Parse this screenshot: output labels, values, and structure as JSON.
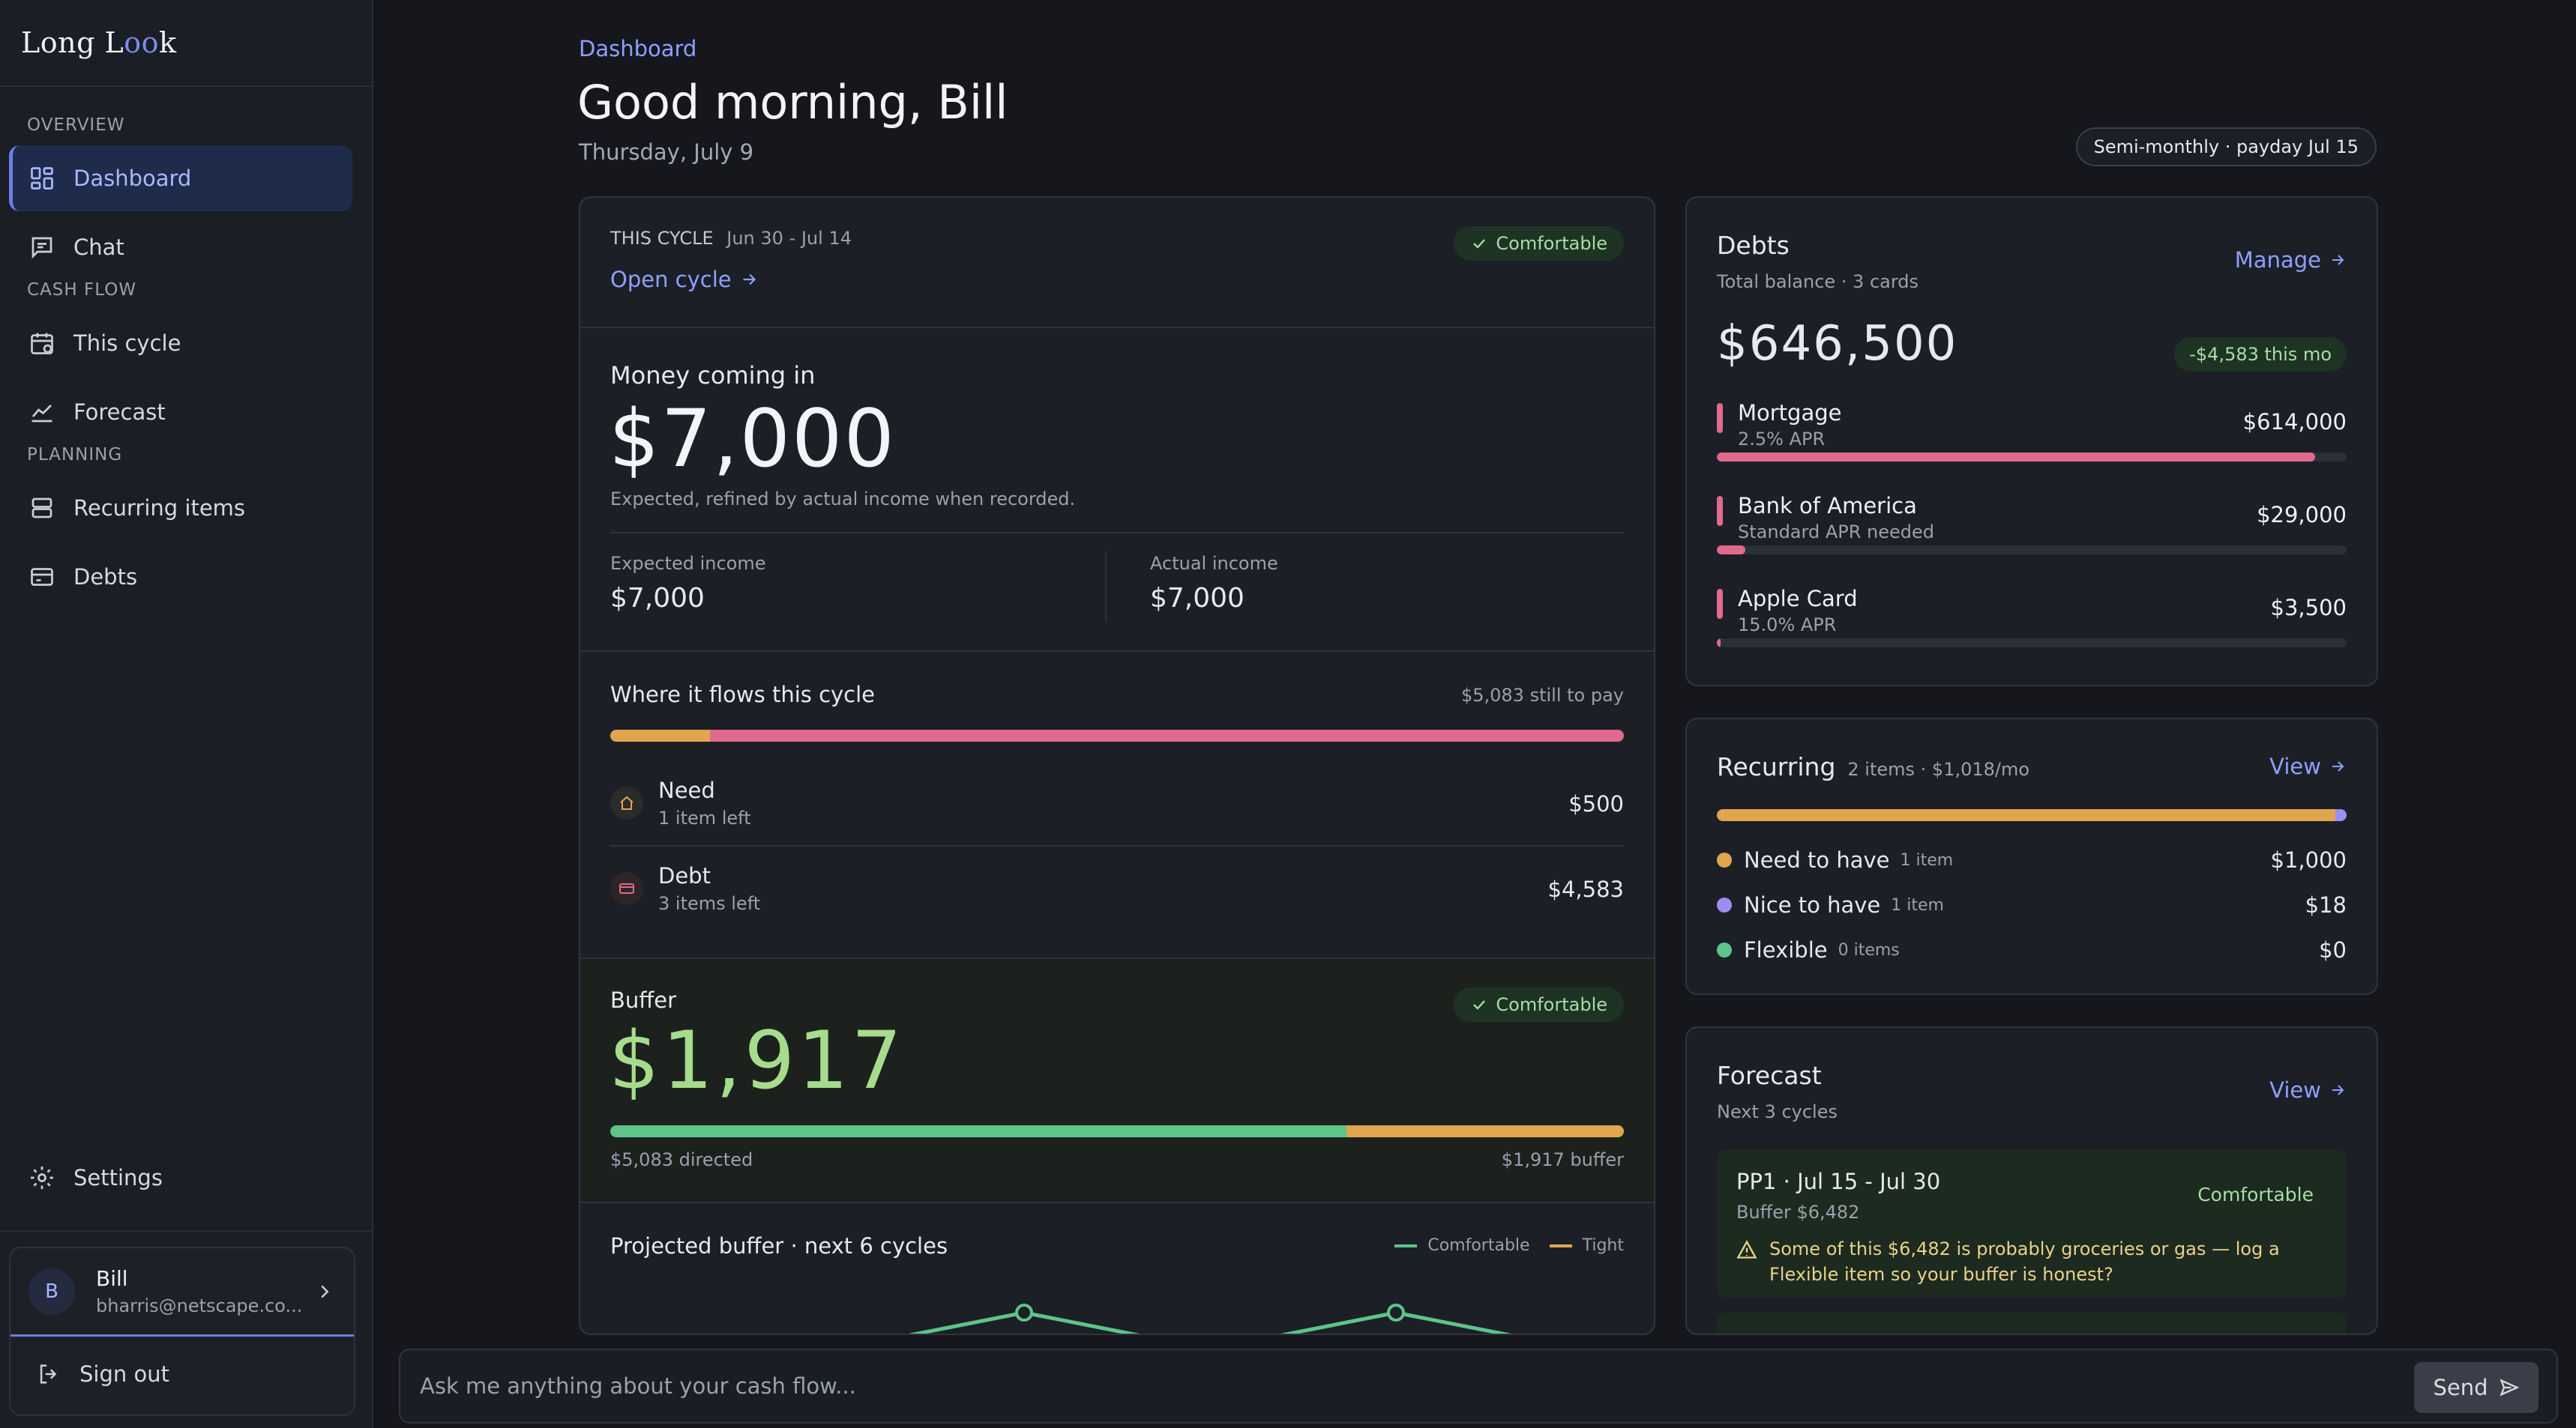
{
  "brand": {
    "name_prefix": "Long L",
    "name_eyes": "oo",
    "name_suffix": "k"
  },
  "sidebar": {
    "sections": [
      "OVERVIEW",
      "CASH FLOW",
      "PLANNING"
    ],
    "items": [
      {
        "label": "Dashboard",
        "icon": "dashboard-icon",
        "active": true
      },
      {
        "label": "Chat",
        "icon": "chat-icon"
      },
      {
        "label": "This cycle",
        "icon": "calendar-icon"
      },
      {
        "label": "Forecast",
        "icon": "chart-line-icon"
      },
      {
        "label": "Recurring items",
        "icon": "stack-icon"
      },
      {
        "label": "Debts",
        "icon": "card-icon"
      }
    ],
    "settings_label": "Settings",
    "user": {
      "initial": "B",
      "name": "Bill",
      "email": "bharris@netscape.co..."
    },
    "signout_label": "Sign out"
  },
  "header": {
    "breadcrumb": "Dashboard",
    "title": "Good morning, Bill",
    "date": "Thursday, July 9",
    "pay_schedule": "Semi-monthly · payday Jul 15"
  },
  "cycle": {
    "label": "THIS CYCLE",
    "range": "Jun 30 - Jul 14",
    "open_link": "Open cycle",
    "status": "Comfortable",
    "income_title": "Money coming in",
    "income_amount": "$7,000",
    "income_note": "Expected, refined by actual income when recorded.",
    "expected_label": "Expected income",
    "expected_value": "$7,000",
    "actual_label": "Actual income",
    "actual_value": "$7,000",
    "flows_title": "Where it flows this cycle",
    "flows_remaining": "$5,083 still to pay",
    "flow_split": {
      "need": 500,
      "debt": 4583
    },
    "flows": [
      {
        "name": "Need",
        "sub": "1 item left",
        "amount": "$500",
        "icon": "home-icon"
      },
      {
        "name": "Debt",
        "sub": "3 items left",
        "amount": "$4,583",
        "icon": "card-icon"
      }
    ],
    "buffer_title": "Buffer",
    "buffer_status": "Comfortable",
    "buffer_amount": "$1,917",
    "buffer_directed_label": "$5,083 directed",
    "buffer_label": "$1,917 buffer",
    "buffer_split": {
      "directed": 5083,
      "buffer": 1917
    },
    "projected_title": "Projected buffer · next 6 cycles",
    "legend_comfortable": "Comfortable",
    "legend_tight": "Tight"
  },
  "debts": {
    "title": "Debts",
    "subtitle": "Total balance · 3 cards",
    "manage_link": "Manage",
    "total": "$646,500",
    "change": "-$4,583 this mo",
    "items": [
      {
        "name": "Mortgage",
        "sub": "2.5% APR",
        "amount": "$614,000",
        "fill": 0.95
      },
      {
        "name": "Bank of America",
        "sub": "Standard APR needed",
        "amount": "$29,000",
        "fill": 0.045
      },
      {
        "name": "Apple Card",
        "sub": "15.0% APR",
        "amount": "$3,500",
        "fill": 0.006
      }
    ]
  },
  "recurring": {
    "title": "Recurring",
    "subtitle": "2 items · $1,018/mo",
    "view_link": "View",
    "split": {
      "need": 1000,
      "nice": 18,
      "flexible": 0
    },
    "items": [
      {
        "name": "Need to have",
        "count": "1 item",
        "amount": "$1,000",
        "color": "#e0a64f"
      },
      {
        "name": "Nice to have",
        "count": "1 item",
        "amount": "$18",
        "color": "#a08df0"
      },
      {
        "name": "Flexible",
        "count": "0 items",
        "amount": "$0",
        "color": "#5ec48a"
      }
    ]
  },
  "forecast": {
    "title": "Forecast",
    "subtitle": "Next 3 cycles",
    "view_link": "View",
    "cycle_title": "PP1 · Jul 15 - Jul 30",
    "cycle_buffer": "Buffer $6,482",
    "cycle_status": "Comfortable",
    "cycle_warning": "Some of this $6,482 is probably groceries or gas — log a Flexible item so your buffer is honest?"
  },
  "chat": {
    "placeholder": "Ask me anything about your cash flow...",
    "send_label": "Send"
  },
  "colors": {
    "accent": "#8ea0ff",
    "need": "#e0a64f",
    "debt": "#e06a8d",
    "comfortable": "#5ec48a",
    "buffer_text": "#a6dc8c"
  }
}
